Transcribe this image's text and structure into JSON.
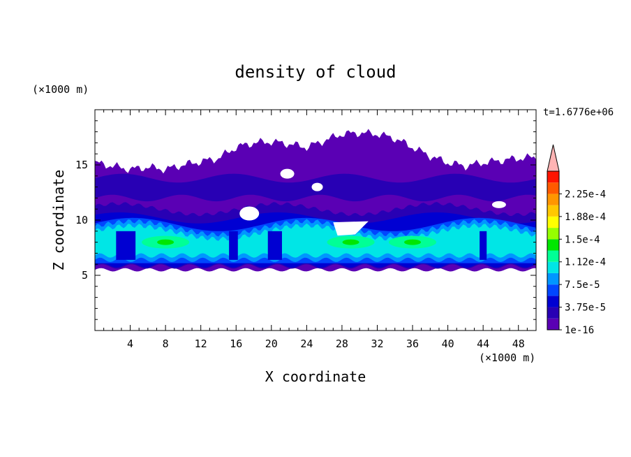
{
  "chart_data": {
    "type": "heatmap",
    "title": "density of cloud",
    "xlabel": "X coordinate",
    "ylabel": "Z coordinate",
    "x_unit": "(×1000 m)",
    "y_unit": "(×1000 m)",
    "time_label": "t=1.6776e+06",
    "xlim": [
      0,
      50
    ],
    "ylim": [
      0,
      20
    ],
    "x_ticks": [
      "4",
      "8",
      "12",
      "16",
      "20",
      "24",
      "28",
      "32",
      "36",
      "40",
      "44",
      "48"
    ],
    "y_ticks": [
      "5",
      "10",
      "15"
    ],
    "colorbar": {
      "levels": [
        "1e-16",
        "3.75e-5",
        "7.5e-5",
        "1.12e-4",
        "1.5e-4",
        "1.88e-4",
        "2.25e-4"
      ],
      "colors": [
        "#5a00b4",
        "#2800b4",
        "#0000d2",
        "#0046ff",
        "#0096ff",
        "#00e6e6",
        "#00ff96",
        "#00e600",
        "#96ff00",
        "#ffff00",
        "#ffc800",
        "#ff9600",
        "#ff5a00",
        "#ff1400"
      ],
      "extend_color": "#ffb4b4"
    },
    "cloud_top_profile": {
      "x": [
        0,
        2,
        4,
        6,
        8,
        10,
        12,
        14,
        16,
        18,
        20,
        22,
        24,
        26,
        28,
        30,
        32,
        34,
        36,
        38,
        40,
        42,
        44,
        46,
        48,
        50
      ],
      "z": [
        15.2,
        14.9,
        14.6,
        14.8,
        14.6,
        15.0,
        15.3,
        15.6,
        16.6,
        17.0,
        17.1,
        16.9,
        16.6,
        17.2,
        17.8,
        17.9,
        17.8,
        17.4,
        16.6,
        15.8,
        15.2,
        14.9,
        15.2,
        15.4,
        15.6,
        15.7
      ]
    },
    "layers": [
      {
        "name": "upper",
        "z_bottom": 5.6,
        "z_top_profile": "cloud_top_profile",
        "value": "1e-16"
      },
      {
        "name": "mid",
        "z_bottom": 5.8,
        "z_top": 11.2,
        "value": "3.75e-5"
      },
      {
        "name": "core",
        "z_bottom": 6.2,
        "z_top": 9.4,
        "value": "1.12e-4"
      },
      {
        "name": "max",
        "z_range": [
          7.4,
          8.6
        ],
        "x_centers": [
          8,
          29,
          36
        ],
        "value": "1.5e-4"
      }
    ]
  }
}
